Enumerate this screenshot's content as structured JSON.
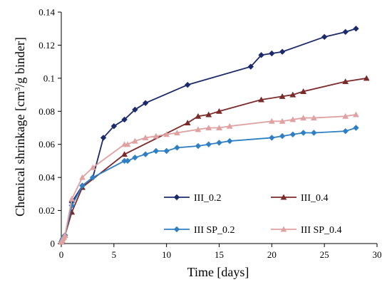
{
  "chart_data": {
    "type": "line",
    "xlabel": "Time [days]",
    "ylabel_parts": [
      "Chemical shrinkage [cm",
      "3",
      "/g binder]"
    ],
    "xlim": [
      0,
      30
    ],
    "ylim": [
      0,
      0.14
    ],
    "x_ticks": [
      "0",
      "5",
      "10",
      "15",
      "20",
      "25",
      "30"
    ],
    "y_ticks": [
      "0",
      "0.02",
      "0.04",
      "0.06",
      "0.08",
      "0.1",
      "0.12",
      "0.14"
    ],
    "grid": false,
    "legend_position": "bottom-right",
    "series": [
      {
        "name": "III_0.2",
        "color": "#1b2a6b",
        "marker": "diamond",
        "points": [
          [
            0.02,
            0.001
          ],
          [
            0.08,
            0.002
          ],
          [
            0.15,
            0.003
          ],
          [
            0.25,
            0.004
          ],
          [
            0.35,
            0.005
          ],
          [
            1,
            0.025
          ],
          [
            2,
            0.035
          ],
          [
            3,
            0.04
          ],
          [
            4,
            0.064
          ],
          [
            5,
            0.071
          ],
          [
            6,
            0.075
          ],
          [
            7,
            0.081
          ],
          [
            8,
            0.085
          ],
          [
            12,
            0.096
          ],
          [
            18,
            0.107
          ],
          [
            19,
            0.114
          ],
          [
            20,
            0.115
          ],
          [
            21,
            0.116
          ],
          [
            25,
            0.125
          ],
          [
            27,
            0.128
          ],
          [
            28,
            0.13
          ]
        ]
      },
      {
        "name": "III_0.4",
        "color": "#7b2a2a",
        "marker": "triangle",
        "points": [
          [
            0.02,
            0.001
          ],
          [
            0.08,
            0.002
          ],
          [
            0.15,
            0.003
          ],
          [
            0.25,
            0.004
          ],
          [
            0.35,
            0.005
          ],
          [
            1,
            0.019
          ],
          [
            2,
            0.034
          ],
          [
            6,
            0.054
          ],
          [
            12,
            0.073
          ],
          [
            13,
            0.077
          ],
          [
            14,
            0.078
          ],
          [
            15,
            0.08
          ],
          [
            19,
            0.087
          ],
          [
            21,
            0.089
          ],
          [
            22,
            0.09
          ],
          [
            23,
            0.092
          ],
          [
            27,
            0.098
          ],
          [
            29,
            0.1
          ]
        ]
      },
      {
        "name": "III SP_0.2",
        "color": "#2f7fc4",
        "marker": "diamond",
        "points": [
          [
            0.02,
            0.001
          ],
          [
            0.08,
            0.002
          ],
          [
            0.15,
            0.003
          ],
          [
            0.25,
            0.004
          ],
          [
            0.35,
            0.005
          ],
          [
            1,
            0.023
          ],
          [
            2,
            0.035
          ],
          [
            3,
            0.04
          ],
          [
            6,
            0.05
          ],
          [
            6.3,
            0.05
          ],
          [
            7,
            0.052
          ],
          [
            8,
            0.054
          ],
          [
            9,
            0.056
          ],
          [
            10,
            0.056
          ],
          [
            11,
            0.058
          ],
          [
            13,
            0.059
          ],
          [
            14,
            0.06
          ],
          [
            15,
            0.061
          ],
          [
            16,
            0.062
          ],
          [
            20,
            0.064
          ],
          [
            21,
            0.065
          ],
          [
            22,
            0.066
          ],
          [
            23,
            0.067
          ],
          [
            24,
            0.067
          ],
          [
            27,
            0.068
          ],
          [
            28,
            0.07
          ]
        ]
      },
      {
        "name": "III SP_0.4",
        "color": "#e0a1a1",
        "marker": "triangle",
        "points": [
          [
            0.02,
            0.001
          ],
          [
            0.08,
            0.002
          ],
          [
            0.15,
            0.003
          ],
          [
            0.25,
            0.004
          ],
          [
            0.35,
            0.005
          ],
          [
            1,
            0.027
          ],
          [
            2,
            0.04
          ],
          [
            3,
            0.046
          ],
          [
            6,
            0.06
          ],
          [
            6.3,
            0.06
          ],
          [
            7,
            0.062
          ],
          [
            8,
            0.064
          ],
          [
            9,
            0.065
          ],
          [
            10,
            0.066
          ],
          [
            11,
            0.067
          ],
          [
            13,
            0.069
          ],
          [
            14,
            0.07
          ],
          [
            15,
            0.07
          ],
          [
            16,
            0.071
          ],
          [
            20,
            0.074
          ],
          [
            21,
            0.074
          ],
          [
            22,
            0.075
          ],
          [
            23,
            0.076
          ],
          [
            24,
            0.076
          ],
          [
            27,
            0.077
          ],
          [
            28,
            0.078
          ]
        ]
      }
    ]
  }
}
